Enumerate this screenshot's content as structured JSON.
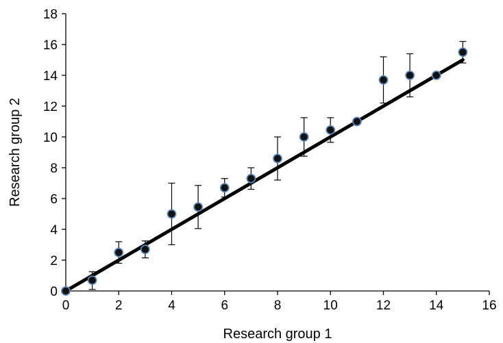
{
  "chart_data": {
    "type": "scatter",
    "title": "",
    "xlabel": "Research group 1",
    "ylabel": "Research group 2",
    "xlim": [
      0,
      16
    ],
    "ylim": [
      0,
      18
    ],
    "xticks": [
      "0",
      "2",
      "4",
      "6",
      "8",
      "10",
      "12",
      "14",
      "16"
    ],
    "yticks": [
      "0",
      "2",
      "4",
      "6",
      "8",
      "10",
      "12",
      "14",
      "16",
      "18"
    ],
    "grid": false,
    "legend": "none",
    "colors": {
      "marker_fill": "#111111",
      "marker_edge": "#5b86b8",
      "line": "#000000"
    },
    "trendline": {
      "x": [
        0,
        15
      ],
      "y": [
        0,
        15
      ]
    },
    "points": [
      {
        "x": 0,
        "y": 0,
        "err_low": 0,
        "err_high": 0
      },
      {
        "x": 1,
        "y": 0.7,
        "err_low": 0.6,
        "err_high": 0.55
      },
      {
        "x": 2,
        "y": 2.5,
        "err_low": 0.7,
        "err_high": 0.7
      },
      {
        "x": 3,
        "y": 2.7,
        "err_low": 0.55,
        "err_high": 0.55
      },
      {
        "x": 4,
        "y": 5.0,
        "err_low": 2.0,
        "err_high": 2.0
      },
      {
        "x": 5,
        "y": 5.45,
        "err_low": 1.4,
        "err_high": 1.4
      },
      {
        "x": 6,
        "y": 6.7,
        "err_low": 0.6,
        "err_high": 0.6
      },
      {
        "x": 7,
        "y": 7.3,
        "err_low": 0.7,
        "err_high": 0.7
      },
      {
        "x": 8,
        "y": 8.6,
        "err_low": 1.4,
        "err_high": 1.4
      },
      {
        "x": 9,
        "y": 10.0,
        "err_low": 1.25,
        "err_high": 1.25
      },
      {
        "x": 10,
        "y": 10.45,
        "err_low": 0.8,
        "err_high": 0.8
      },
      {
        "x": 11,
        "y": 11.0,
        "err_low": 0,
        "err_high": 0
      },
      {
        "x": 12,
        "y": 13.7,
        "err_low": 1.5,
        "err_high": 1.5
      },
      {
        "x": 13,
        "y": 14.0,
        "err_low": 1.4,
        "err_high": 1.4
      },
      {
        "x": 14,
        "y": 14.0,
        "err_low": 0,
        "err_high": 0
      },
      {
        "x": 15,
        "y": 15.5,
        "err_low": 0.7,
        "err_high": 0.7
      }
    ]
  }
}
